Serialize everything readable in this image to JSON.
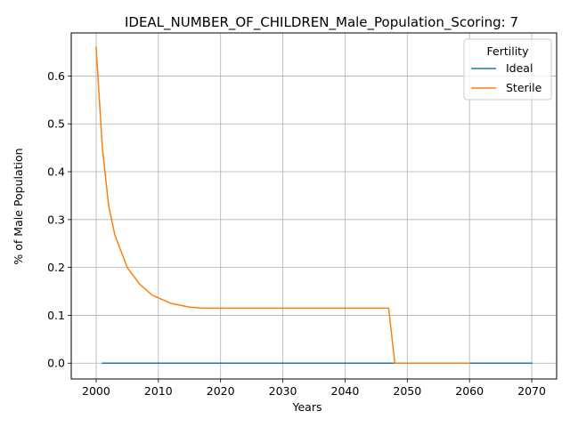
{
  "chart_data": {
    "type": "line",
    "title": "IDEAL_NUMBER_OF_CHILDREN_Male_Population_Scoring: 7",
    "xlabel": "Years",
    "ylabel": "% of Male Population",
    "xlim": [
      1996,
      2074
    ],
    "ylim": [
      -0.033,
      0.69
    ],
    "xticks": [
      2000,
      2010,
      2020,
      2030,
      2040,
      2050,
      2060,
      2070
    ],
    "yticks": [
      0.0,
      0.1,
      0.2,
      0.3,
      0.4,
      0.5,
      0.6
    ],
    "ytick_labels": [
      "0.0",
      "0.1",
      "0.2",
      "0.3",
      "0.4",
      "0.5",
      "0.6"
    ],
    "grid": true,
    "legend": {
      "title": "Fertility",
      "placement": "top-right"
    },
    "series": [
      {
        "name": "Ideal",
        "color": "#1f77b4",
        "x": [
          2001,
          2070
        ],
        "y": [
          0.0,
          0.0
        ]
      },
      {
        "name": "Sterile",
        "color": "#ff7f0e",
        "x": [
          2000,
          2001,
          2002,
          2003,
          2005,
          2007,
          2009,
          2012,
          2015,
          2017,
          2020,
          2030,
          2040,
          2047,
          2048,
          2050,
          2060
        ],
        "y": [
          0.66,
          0.45,
          0.33,
          0.268,
          0.2,
          0.165,
          0.142,
          0.125,
          0.117,
          0.115,
          0.115,
          0.115,
          0.115,
          0.115,
          0.0,
          0.0,
          0.0
        ]
      }
    ]
  }
}
